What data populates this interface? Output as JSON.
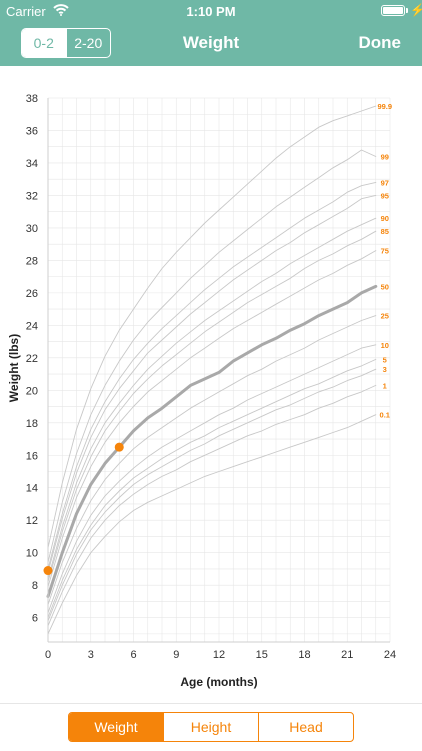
{
  "status_bar": {
    "carrier": "Carrier",
    "time": "1:10 PM",
    "charging": true
  },
  "nav": {
    "segments": [
      {
        "label": "0-2",
        "active": true
      },
      {
        "label": "2-20",
        "active": false
      }
    ],
    "title": "Weight",
    "done_label": "Done"
  },
  "tabs": [
    {
      "label": "Weight",
      "active": true
    },
    {
      "label": "Height",
      "active": false
    },
    {
      "label": "Head",
      "active": false
    }
  ],
  "colors": {
    "accent": "#f5840a",
    "header": "#6fb8a6",
    "grid": "#e6e6e6",
    "curve": "#c8c8c8",
    "median": "#a9a9a9"
  },
  "chart_data": {
    "type": "line",
    "xlabel": "Age (months)",
    "ylabel": "Weight (lbs)",
    "xlim": [
      0,
      24
    ],
    "ylim": [
      4.5,
      38
    ],
    "xticks": [
      0,
      3,
      6,
      9,
      12,
      15,
      18,
      21,
      24
    ],
    "yticks": [
      6,
      8,
      10,
      12,
      14,
      16,
      18,
      20,
      22,
      24,
      26,
      28,
      30,
      32,
      34,
      36,
      38
    ],
    "grid": true,
    "x": [
      0,
      1,
      2,
      3,
      4,
      5,
      6,
      7,
      8,
      9,
      10,
      11,
      12,
      13,
      14,
      15,
      16,
      17,
      18,
      19,
      20,
      21,
      22,
      23
    ],
    "series": [
      {
        "name": "0.1",
        "values": [
          5.0,
          6.9,
          8.6,
          10.0,
          11.0,
          11.9,
          12.6,
          13.1,
          13.5,
          13.9,
          14.3,
          14.7,
          15.0,
          15.3,
          15.6,
          15.9,
          16.2,
          16.5,
          16.8,
          17.1,
          17.4,
          17.7,
          18.1,
          18.5
        ]
      },
      {
        "name": "1",
        "values": [
          5.5,
          7.6,
          9.4,
          10.9,
          12.0,
          12.9,
          13.6,
          14.2,
          14.7,
          15.1,
          15.6,
          16.0,
          16.4,
          16.8,
          17.2,
          17.5,
          17.9,
          18.2,
          18.5,
          18.9,
          19.2,
          19.6,
          19.9,
          20.3
        ]
      },
      {
        "name": "3",
        "values": [
          5.8,
          8.0,
          9.9,
          11.4,
          12.5,
          13.4,
          14.2,
          14.8,
          15.3,
          15.8,
          16.3,
          16.7,
          17.2,
          17.6,
          18.0,
          18.4,
          18.8,
          19.1,
          19.5,
          19.9,
          20.2,
          20.6,
          20.9,
          21.3
        ]
      },
      {
        "name": "5",
        "values": [
          6.0,
          8.3,
          10.2,
          11.7,
          12.9,
          13.8,
          14.6,
          15.2,
          15.8,
          16.3,
          16.8,
          17.2,
          17.7,
          18.1,
          18.5,
          18.9,
          19.3,
          19.7,
          20.1,
          20.4,
          20.8,
          21.2,
          21.5,
          21.9
        ]
      },
      {
        "name": "10",
        "values": [
          6.3,
          8.7,
          10.7,
          12.3,
          13.5,
          14.4,
          15.2,
          15.9,
          16.5,
          17.0,
          17.5,
          18.0,
          18.5,
          18.9,
          19.4,
          19.8,
          20.2,
          20.6,
          21.0,
          21.4,
          21.8,
          22.2,
          22.6,
          22.8
        ]
      },
      {
        "name": "25",
        "values": [
          6.8,
          9.4,
          11.5,
          13.2,
          14.5,
          15.5,
          16.4,
          17.1,
          17.7,
          18.3,
          18.9,
          19.4,
          19.9,
          20.4,
          20.9,
          21.3,
          21.8,
          22.2,
          22.6,
          23.1,
          23.5,
          23.9,
          24.3,
          24.6
        ]
      },
      {
        "name": "50",
        "values": [
          7.3,
          10.0,
          12.4,
          14.2,
          15.5,
          16.5,
          17.5,
          18.3,
          18.9,
          19.6,
          20.3,
          20.7,
          21.1,
          21.8,
          22.3,
          22.8,
          23.2,
          23.7,
          24.1,
          24.6,
          25.0,
          25.4,
          26.0,
          26.4
        ]
      },
      {
        "name": "75",
        "values": [
          7.9,
          10.9,
          13.4,
          15.3,
          16.8,
          18.0,
          19.0,
          19.9,
          20.6,
          21.3,
          22.0,
          22.6,
          23.2,
          23.8,
          24.3,
          24.8,
          25.3,
          25.8,
          26.3,
          26.8,
          27.2,
          27.7,
          28.1,
          28.6
        ]
      },
      {
        "name": "85",
        "values": [
          8.2,
          11.3,
          13.9,
          15.9,
          17.5,
          18.7,
          19.8,
          20.7,
          21.5,
          22.2,
          22.9,
          23.6,
          24.2,
          24.8,
          25.4,
          25.9,
          26.4,
          26.9,
          27.5,
          28.0,
          28.4,
          28.9,
          29.3,
          29.8
        ]
      },
      {
        "name": "90",
        "values": [
          8.4,
          11.6,
          14.3,
          16.4,
          18.0,
          19.2,
          20.3,
          21.3,
          22.1,
          22.9,
          23.6,
          24.3,
          24.9,
          25.5,
          26.1,
          26.7,
          27.2,
          27.8,
          28.3,
          28.8,
          29.3,
          29.8,
          30.2,
          30.6
        ]
      },
      {
        "name": "95",
        "values": [
          8.8,
          12.1,
          14.9,
          17.1,
          18.8,
          20.1,
          21.2,
          22.3,
          23.1,
          23.9,
          24.7,
          25.4,
          26.1,
          26.8,
          27.4,
          28.0,
          28.6,
          29.1,
          29.7,
          30.2,
          30.7,
          31.2,
          31.8,
          32.0
        ]
      },
      {
        "name": "97",
        "values": [
          9.0,
          12.4,
          15.3,
          17.6,
          19.3,
          20.7,
          21.9,
          22.9,
          23.8,
          24.6,
          25.4,
          26.2,
          26.9,
          27.6,
          28.2,
          28.8,
          29.4,
          30.0,
          30.6,
          31.1,
          31.6,
          32.2,
          32.6,
          32.8
        ]
      },
      {
        "name": "99",
        "values": [
          9.4,
          13.1,
          16.1,
          18.5,
          20.3,
          21.8,
          23.1,
          24.2,
          25.1,
          26.0,
          26.9,
          27.7,
          28.5,
          29.2,
          29.9,
          30.6,
          31.3,
          31.9,
          32.5,
          33.1,
          33.7,
          34.2,
          34.8,
          34.4
        ]
      },
      {
        "name": "99.9",
        "values": [
          10.3,
          14.3,
          17.6,
          20.1,
          22.1,
          23.7,
          25.0,
          26.3,
          27.5,
          28.5,
          29.4,
          30.3,
          31.1,
          31.9,
          32.7,
          33.5,
          34.3,
          35.0,
          35.6,
          36.2,
          36.6,
          36.9,
          37.2,
          37.5
        ]
      }
    ],
    "highlight_series": "50",
    "points": [
      {
        "x": 0,
        "y": 8.9
      },
      {
        "x": 5,
        "y": 16.5
      }
    ]
  }
}
